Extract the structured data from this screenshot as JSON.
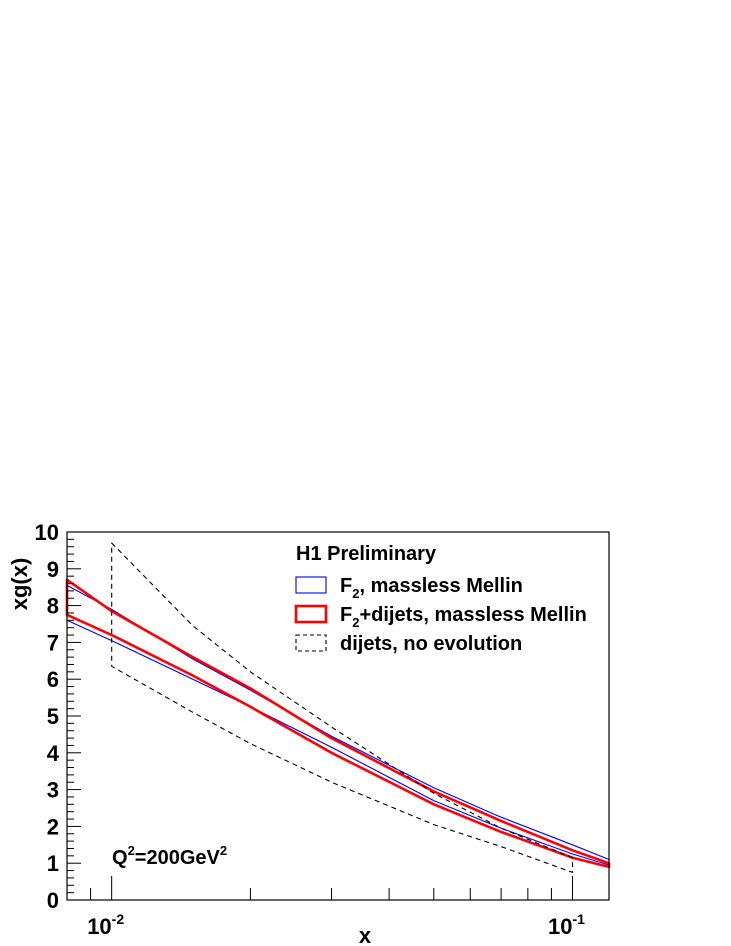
{
  "chart_data": {
    "type": "line",
    "title": "",
    "xlabel": "x",
    "ylabel": "xg(x)",
    "x_scale": "log",
    "xlim": [
      0.008,
      0.12
    ],
    "ylim": [
      0,
      10
    ],
    "grid": false,
    "y_ticks": [
      0,
      1,
      2,
      3,
      4,
      5,
      6,
      7,
      8,
      9,
      10
    ],
    "x_tick_labels": [
      {
        "base": "10",
        "exp": "-2",
        "value": 0.01
      },
      {
        "base": "10",
        "exp": "-1",
        "value": 0.1
      }
    ],
    "legend": {
      "placement": "top-right",
      "header": "H1 Preliminary",
      "entries": [
        {
          "label_main": "F",
          "label_sub": "2",
          "label_rest": ", massless Mellin",
          "color": "#0000ff",
          "style": "solid",
          "width": "thin"
        },
        {
          "label_main": "F",
          "label_sub": "2",
          "label_rest": "+dijets, massless Mellin",
          "color": "#ff0000",
          "style": "solid",
          "width": "thick"
        },
        {
          "label_main": "",
          "label_sub": "",
          "label_rest": "dijets, no evolution",
          "color": "#000000",
          "style": "dashed",
          "width": "thin"
        }
      ]
    },
    "annotation": {
      "prefix": "Q",
      "sup1": "2",
      "middle": "=200GeV",
      "sup2": "2"
    },
    "series": [
      {
        "name": "F2, massless Mellin",
        "color": "#0000ff",
        "x": [
          0.008,
          0.01,
          0.015,
          0.02,
          0.03,
          0.05,
          0.07,
          0.1,
          0.12
        ],
        "upper": [
          8.55,
          7.9,
          6.55,
          5.7,
          4.45,
          3.05,
          2.25,
          1.5,
          1.1
        ],
        "lower": [
          7.6,
          7.05,
          6.0,
          5.25,
          4.15,
          2.7,
          1.95,
          1.25,
          0.95
        ]
      },
      {
        "name": "F2+dijets, massless Mellin",
        "color": "#ff0000",
        "x": [
          0.008,
          0.01,
          0.015,
          0.02,
          0.03,
          0.05,
          0.07,
          0.1,
          0.12
        ],
        "upper": [
          8.7,
          7.85,
          6.6,
          5.75,
          4.4,
          2.95,
          2.15,
          1.35,
          1.0
        ],
        "lower": [
          7.75,
          7.2,
          6.1,
          5.25,
          4.0,
          2.6,
          1.85,
          1.15,
          0.9
        ]
      },
      {
        "name": "dijets, no evolution",
        "color": "#000000",
        "x": [
          0.01,
          0.015,
          0.02,
          0.03,
          0.05,
          0.07,
          0.1
        ],
        "upper": [
          9.7,
          7.45,
          6.2,
          4.7,
          2.9,
          1.95,
          1.15
        ],
        "lower": [
          6.35,
          5.1,
          4.25,
          3.2,
          2.05,
          1.45,
          0.75
        ]
      }
    ]
  }
}
